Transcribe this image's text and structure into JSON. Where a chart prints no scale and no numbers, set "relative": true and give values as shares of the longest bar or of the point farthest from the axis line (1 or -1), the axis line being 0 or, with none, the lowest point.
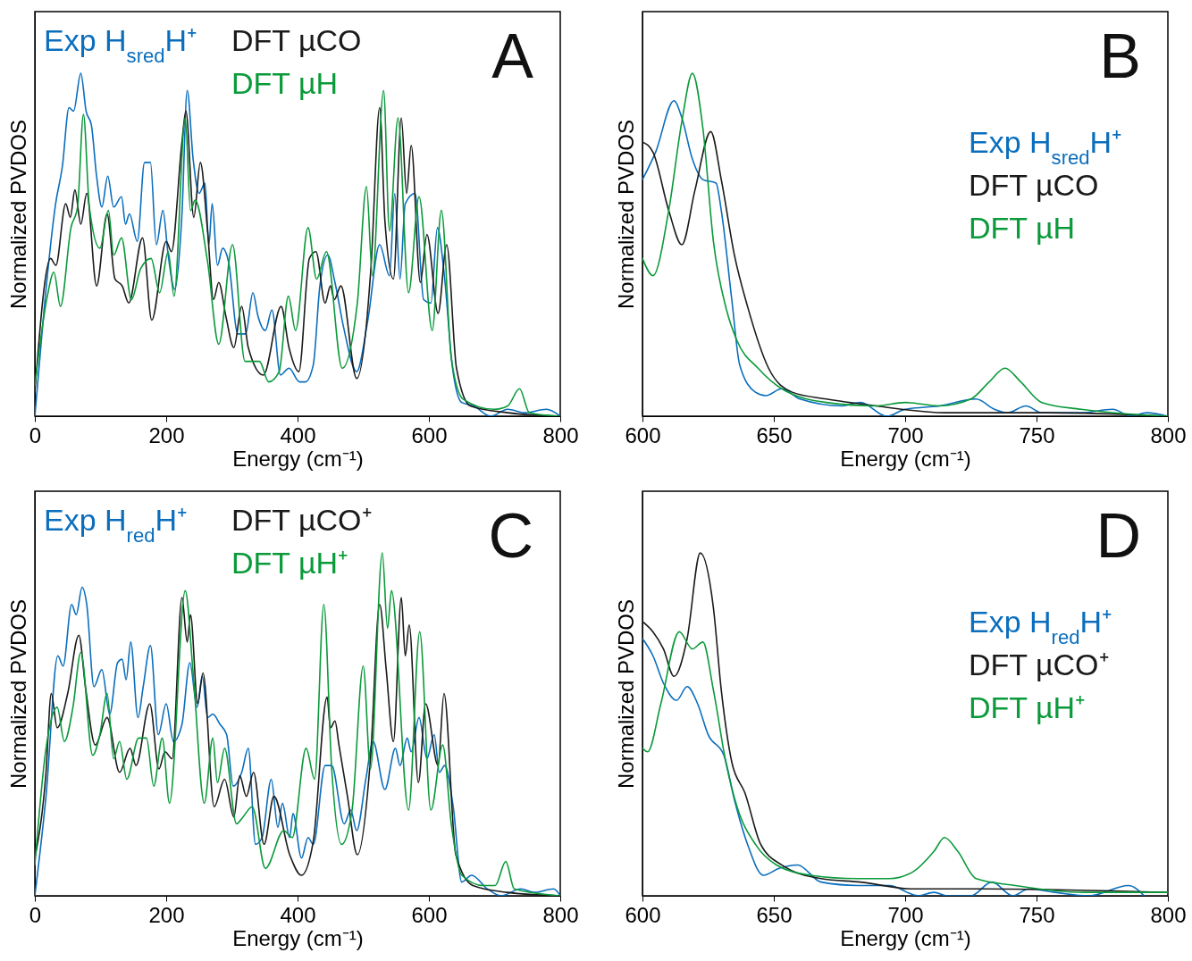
{
  "chart_data": [
    {
      "type": "line",
      "xlabel": "Energy (cm⁻¹)",
      "ylabel": "Normalized PVDOS",
      "xlim": [
        0,
        800
      ],
      "xticks": [
        0,
        200,
        400,
        600,
        800
      ],
      "relative": true,
      "legend": "top left",
      "annotations": [
        "A"
      ],
      "series": [
        {
          "name": "Exp H$_{sred}$H⁺",
          "color": "#0a6ebd",
          "x": [
            0,
            13.5,
            31.7,
            42,
            52,
            59,
            70,
            78,
            86,
            94,
            102,
            111,
            120,
            132,
            138,
            144,
            156,
            167,
            176,
            185,
            195,
            203,
            213,
            224,
            232,
            241,
            250,
            259,
            265,
            270,
            278,
            286,
            295,
            309,
            321,
            332,
            340,
            351,
            361,
            374,
            387,
            403,
            412,
            424,
            434,
            446,
            457,
            470,
            490,
            507,
            525,
            540,
            548,
            556,
            564,
            579,
            592,
            603,
            613,
            623,
            636,
            650,
            668,
            694,
            720,
            746,
            779,
            800
          ],
          "values": [
            0,
            0.3,
            0.62,
            0.73,
            0.9,
            0.89,
            1.0,
            0.89,
            0.85,
            0.7,
            0.61,
            0.7,
            0.61,
            0.64,
            0.56,
            0.59,
            0.51,
            0.74,
            0.74,
            0.5,
            0.6,
            0.47,
            0.37,
            0.59,
            0.95,
            0.75,
            0.65,
            0.68,
            0.5,
            0.62,
            0.44,
            0.49,
            0.45,
            0.24,
            0.24,
            0.36,
            0.29,
            0.25,
            0.31,
            0.12,
            0.14,
            0.1,
            0.1,
            0.15,
            0.38,
            0.47,
            0.39,
            0.26,
            0.13,
            0.28,
            0.5,
            0.41,
            0.65,
            0.4,
            0.62,
            0.65,
            0.34,
            0.33,
            0.55,
            0.42,
            0.14,
            0.04,
            0.03,
            0.0,
            0.02,
            0.01,
            0.02,
            0.0
          ]
        },
        {
          "name": "DFT µCO",
          "color": "#1a1a1a",
          "x": [
            0,
            24,
            32,
            47,
            54,
            61,
            70,
            79,
            94,
            110,
            122,
            133,
            143,
            164,
            178,
            200,
            208,
            224,
            230,
            242,
            252,
            263,
            272,
            280,
            291,
            303,
            315,
            325,
            348,
            375,
            387,
            402,
            418,
            428,
            442,
            450,
            456,
            466,
            490,
            512,
            525,
            533,
            546,
            558,
            566,
            573,
            587,
            597,
            614,
            627,
            642,
            663,
            720,
            800
          ],
          "values": [
            0.07,
            0.46,
            0.44,
            0.62,
            0.58,
            0.66,
            0.56,
            0.65,
            0.38,
            0.59,
            0.4,
            0.38,
            0.33,
            0.52,
            0.28,
            0.51,
            0.48,
            0.8,
            0.89,
            0.58,
            0.74,
            0.54,
            0.34,
            0.39,
            0.29,
            0.2,
            0.32,
            0.2,
            0.12,
            0.32,
            0.2,
            0.13,
            0.46,
            0.48,
            0.33,
            0.38,
            0.34,
            0.38,
            0.11,
            0.44,
            0.9,
            0.57,
            0.4,
            0.87,
            0.65,
            0.79,
            0.39,
            0.53,
            0.3,
            0.5,
            0.14,
            0.03,
            0.01,
            0.0
          ]
        },
        {
          "name": "DFT µH",
          "color": "#0a9a3a",
          "x": [
            0,
            19,
            29,
            39,
            55,
            65,
            74,
            83,
            99,
            112,
            120,
            132,
            147,
            161,
            177,
            190,
            203,
            212,
            229,
            237,
            244,
            263,
            280,
            301,
            320,
            342,
            356,
            372,
            386,
            397,
            416,
            429,
            444,
            468,
            491,
            505,
            514,
            531,
            540,
            553,
            569,
            585,
            605,
            619,
            634,
            652,
            699,
            720,
            738,
            753,
            800
          ],
          "values": [
            0.09,
            0.35,
            0.42,
            0.32,
            0.55,
            0.61,
            0.88,
            0.61,
            0.49,
            0.6,
            0.47,
            0.52,
            0.34,
            0.43,
            0.46,
            0.36,
            0.48,
            0.35,
            0.87,
            0.6,
            0.63,
            0.45,
            0.21,
            0.5,
            0.16,
            0.16,
            0.1,
            0.13,
            0.35,
            0.25,
            0.55,
            0.4,
            0.48,
            0.14,
            0.33,
            0.67,
            0.41,
            0.95,
            0.54,
            0.87,
            0.36,
            0.64,
            0.25,
            0.6,
            0.17,
            0.05,
            0.02,
            0.03,
            0.08,
            0.01,
            0.0
          ]
        }
      ]
    },
    {
      "type": "line",
      "xlabel": "Energy (cm⁻¹)",
      "ylabel": "Normalized PVDOS",
      "xlim": [
        600,
        800
      ],
      "xticks": [
        600,
        650,
        700,
        750,
        800
      ],
      "relative": true,
      "legend": "right",
      "annotations": [
        "B"
      ],
      "series": [
        {
          "name": "Exp H$_{sred}$H⁺",
          "color": "#0a6ebd",
          "x": [
            600,
            605,
            612,
            615,
            619,
            623,
            628,
            630,
            634,
            637,
            643,
            647,
            653,
            660,
            676,
            683,
            693,
            700,
            713,
            727,
            734,
            739,
            746,
            752,
            767,
            779,
            786,
            792,
            800
          ],
          "values": [
            0.69,
            0.77,
            0.92,
            0.87,
            0.75,
            0.69,
            0.68,
            0.6,
            0.34,
            0.15,
            0.07,
            0.06,
            0.08,
            0.05,
            0.03,
            0.04,
            0.0,
            0.02,
            0.03,
            0.05,
            0.02,
            0.01,
            0.03,
            0.01,
            0.01,
            0.02,
            0.0,
            0.01,
            0.0
          ]
        },
        {
          "name": "DFT µCO",
          "color": "#1a1a1a",
          "x": [
            600,
            604,
            610,
            615,
            620,
            626,
            630,
            635,
            640,
            648,
            657,
            670,
            689,
            715,
            754,
            800
          ],
          "values": [
            0.8,
            0.77,
            0.6,
            0.5,
            0.66,
            0.83,
            0.69,
            0.47,
            0.32,
            0.14,
            0.07,
            0.05,
            0.03,
            0.01,
            0.01,
            0.0
          ]
        },
        {
          "name": "DFT µH",
          "color": "#0a9a3a",
          "x": [
            600,
            604,
            610,
            615,
            619,
            623,
            627,
            632,
            636,
            644,
            653,
            670,
            689,
            700,
            713,
            725,
            732,
            738,
            744,
            752,
            767,
            800
          ],
          "values": [
            0.46,
            0.41,
            0.6,
            0.86,
            1.0,
            0.84,
            0.51,
            0.31,
            0.22,
            0.14,
            0.08,
            0.04,
            0.03,
            0.04,
            0.03,
            0.05,
            0.1,
            0.14,
            0.1,
            0.04,
            0.02,
            0.0
          ]
        }
      ]
    },
    {
      "type": "line",
      "xlabel": "Energy (cm⁻¹)",
      "ylabel": "Normalized PVDOS",
      "xlim": [
        0,
        800
      ],
      "xticks": [
        0,
        200,
        400,
        600,
        800
      ],
      "relative": true,
      "legend": "top left",
      "annotations": [
        "C"
      ],
      "series": [
        {
          "name": "Exp H$_{red}$H⁺",
          "color": "#0a6ebd",
          "x": [
            0,
            17,
            35,
            43,
            56,
            63,
            72,
            79,
            90,
            102,
            114,
            126,
            133,
            139,
            146,
            157,
            165,
            176,
            188,
            200,
            211,
            224,
            236,
            247,
            255,
            263,
            271,
            282,
            292,
            302,
            315,
            325,
            336,
            346,
            360,
            370,
            377,
            388,
            393,
            406,
            416,
            424,
            442,
            452,
            471,
            481,
            490,
            504,
            515,
            533,
            549,
            556,
            567,
            573,
            585,
            597,
            608,
            616,
            624,
            637,
            650,
            665,
            689,
            710,
            740,
            761,
            790,
            800
          ],
          "values": [
            0,
            0.29,
            0.7,
            0.67,
            0.85,
            0.82,
            0.9,
            0.85,
            0.61,
            0.66,
            0.53,
            0.68,
            0.69,
            0.63,
            0.74,
            0.52,
            0.61,
            0.73,
            0.47,
            0.56,
            0.45,
            0.5,
            0.68,
            0.55,
            0.64,
            0.52,
            0.53,
            0.5,
            0.47,
            0.32,
            0.36,
            0.43,
            0.15,
            0.17,
            0.34,
            0.2,
            0.27,
            0.17,
            0.24,
            0.11,
            0.17,
            0.15,
            0.38,
            0.38,
            0.21,
            0.25,
            0.19,
            0.34,
            0.45,
            0.31,
            0.43,
            0.38,
            0.46,
            0.42,
            0.52,
            0.4,
            0.47,
            0.36,
            0.38,
            0.26,
            0.04,
            0.06,
            0.02,
            0.0,
            0.02,
            0.01,
            0.02,
            0.0
          ]
        },
        {
          "name": "DFT µCO⁺",
          "color": "#1a1a1a",
          "x": [
            0,
            17,
            25,
            34,
            50,
            67,
            77,
            92,
            110,
            129,
            145,
            154,
            175,
            189,
            198,
            209,
            224,
            232,
            237,
            248,
            256,
            273,
            289,
            303,
            312,
            322,
            333,
            349,
            364,
            388,
            406,
            424,
            445,
            450,
            457,
            463,
            476,
            491,
            511,
            525,
            535,
            546,
            558,
            564,
            570,
            584,
            595,
            614,
            623,
            641,
            667,
            719,
            800
          ],
          "values": [
            0.11,
            0.36,
            0.59,
            0.49,
            0.59,
            0.76,
            0.61,
            0.44,
            0.52,
            0.36,
            0.43,
            0.38,
            0.56,
            0.37,
            0.42,
            0.4,
            0.87,
            0.74,
            0.82,
            0.56,
            0.65,
            0.26,
            0.34,
            0.23,
            0.35,
            0.29,
            0.36,
            0.15,
            0.29,
            0.12,
            0.06,
            0.16,
            0.58,
            0.49,
            0.51,
            0.44,
            0.29,
            0.12,
            0.4,
            0.85,
            0.66,
            0.45,
            0.87,
            0.7,
            0.79,
            0.33,
            0.56,
            0.38,
            0.59,
            0.12,
            0.03,
            0.01,
            0.0
          ]
        },
        {
          "name": "DFT µH⁺",
          "color": "#0a9a3a",
          "x": [
            0,
            17,
            34,
            45,
            58,
            70,
            88,
            99,
            110,
            120,
            129,
            140,
            158,
            170,
            181,
            194,
            205,
            229,
            241,
            258,
            271,
            278,
            289,
            307,
            317,
            331,
            351,
            379,
            392,
            413,
            426,
            440,
            452,
            467,
            483,
            500,
            511,
            529,
            537,
            543,
            569,
            586,
            603,
            621,
            634,
            650,
            683,
            701,
            717,
            730,
            800
          ],
          "values": [
            0.09,
            0.43,
            0.55,
            0.45,
            0.55,
            0.71,
            0.41,
            0.47,
            0.59,
            0.4,
            0.45,
            0.34,
            0.46,
            0.46,
            0.32,
            0.46,
            0.27,
            0.89,
            0.65,
            0.27,
            0.46,
            0.33,
            0.43,
            0.21,
            0.23,
            0.26,
            0.08,
            0.19,
            0.17,
            0.43,
            0.34,
            0.85,
            0.37,
            0.15,
            0.25,
            0.67,
            0.37,
            1.0,
            0.78,
            0.89,
            0.25,
            0.77,
            0.25,
            0.44,
            0.21,
            0.06,
            0.03,
            0.03,
            0.1,
            0.02,
            0.0
          ]
        }
      ]
    },
    {
      "type": "line",
      "xlabel": "Energy (cm⁻¹)",
      "ylabel": "Normalized PVDOS",
      "xlim": [
        600,
        800
      ],
      "xticks": [
        600,
        650,
        700,
        750,
        800
      ],
      "relative": true,
      "legend": "right",
      "annotations": [
        "D"
      ],
      "series": [
        {
          "name": "Exp H$_{red}$H⁺",
          "color": "#0a6ebd",
          "x": [
            600,
            604,
            608,
            613,
            617,
            621,
            625,
            631,
            635,
            640,
            646,
            652,
            659,
            668,
            682,
            694,
            705,
            711,
            716,
            725,
            733,
            741,
            747,
            757,
            770,
            785,
            791
          ],
          "values": [
            0.75,
            0.7,
            0.62,
            0.57,
            0.61,
            0.56,
            0.47,
            0.41,
            0.28,
            0.15,
            0.06,
            0.08,
            0.09,
            0.04,
            0.03,
            0.03,
            0.0,
            0.01,
            0.0,
            0.0,
            0.04,
            0.0,
            0.02,
            0.01,
            0.0,
            0.03,
            0.0
          ]
        },
        {
          "name": "DFT µCO⁺",
          "color": "#1a1a1a",
          "x": [
            600,
            604,
            608,
            612,
            617,
            622,
            627,
            630,
            634,
            639,
            645,
            653,
            668,
            683,
            703,
            729,
            800
          ],
          "values": [
            0.8,
            0.77,
            0.72,
            0.64,
            0.75,
            1.0,
            0.84,
            0.6,
            0.39,
            0.3,
            0.15,
            0.09,
            0.05,
            0.04,
            0.02,
            0.02,
            0.01
          ]
        },
        {
          "name": "DFT µH⁺",
          "color": "#0a9a3a",
          "x": [
            600,
            602,
            607,
            614,
            619,
            623,
            627,
            632,
            636,
            643,
            651,
            664,
            682,
            694,
            703,
            711,
            715,
            720,
            727,
            742,
            768,
            800
          ],
          "values": [
            0.43,
            0.42,
            0.56,
            0.77,
            0.72,
            0.74,
            0.6,
            0.38,
            0.26,
            0.15,
            0.09,
            0.06,
            0.05,
            0.05,
            0.07,
            0.13,
            0.17,
            0.13,
            0.05,
            0.03,
            0.01,
            0.01
          ]
        }
      ]
    }
  ]
}
